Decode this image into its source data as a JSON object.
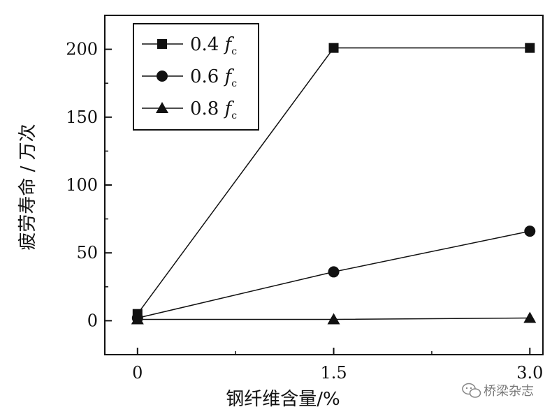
{
  "chart_data": {
    "type": "line",
    "title": "",
    "xlabel": "钢纤维含量/%",
    "ylabel": "疲劳寿命 / 万次",
    "x": [
      0,
      1.5,
      3.0
    ],
    "x_tick_labels": [
      "0",
      "1.5",
      "3.0"
    ],
    "y_ticks": [
      0,
      50,
      100,
      150,
      200
    ],
    "y_tick_labels": [
      "0",
      "50",
      "100",
      "150",
      "200"
    ],
    "xlim": [
      -0.25,
      3.1
    ],
    "ylim": [
      -25,
      225
    ],
    "grid": false,
    "legend_position": "top-left",
    "series": [
      {
        "name_prefix": "0.4 ",
        "name_var": "f",
        "name_sub": "c",
        "marker": "square",
        "values": [
          5,
          201,
          201
        ]
      },
      {
        "name_prefix": "0.6 ",
        "name_var": "f",
        "name_sub": "c",
        "marker": "circle",
        "values": [
          2,
          36,
          66
        ]
      },
      {
        "name_prefix": "0.8 ",
        "name_var": "f",
        "name_sub": "c",
        "marker": "triangle",
        "values": [
          1,
          1,
          2
        ]
      }
    ]
  },
  "watermark": {
    "text": "桥梁杂志",
    "icon": "wechat-icon"
  }
}
